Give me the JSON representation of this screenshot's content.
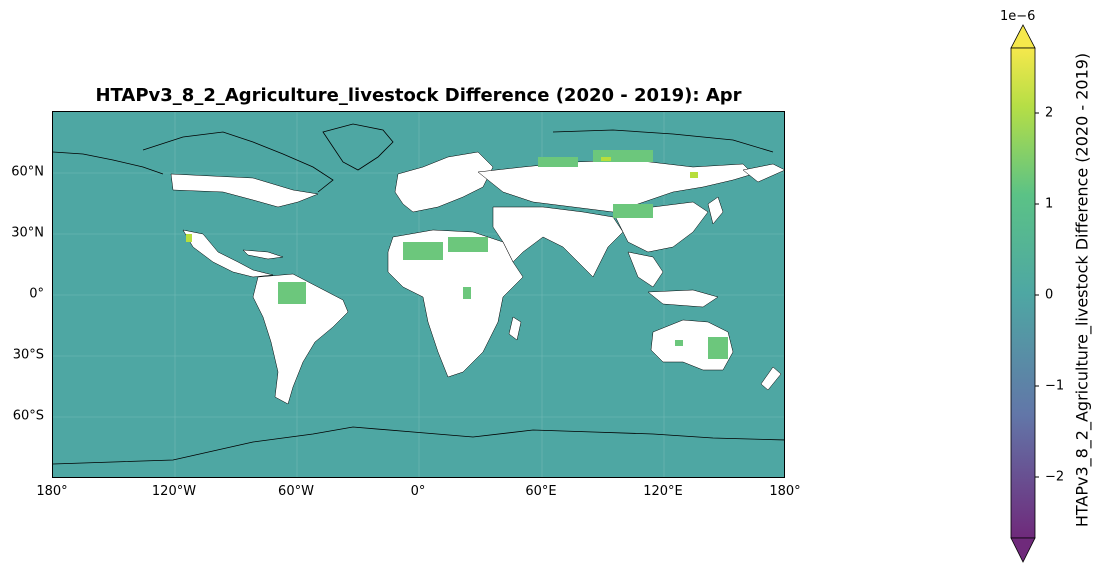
{
  "title": "HTAPv3_8_2_Agriculture_livestock Difference (2020 - 2019): Apr",
  "map": {
    "projection": "PlateCarree",
    "ocean_color": "#4ea7a3",
    "land_nodata_color": "#ffffff",
    "positive_color": "#6cc77c",
    "high_color": "#b7de3c",
    "coastline_color": "#000000"
  },
  "lat_ticks": [
    "60°N",
    "30°N",
    "0°",
    "30°S",
    "60°S"
  ],
  "lon_ticks": [
    "180°",
    "120°W",
    "60°W",
    "0°",
    "60°E",
    "120°E",
    "180°"
  ],
  "colorbar": {
    "label": "HTAPv3_8_2_Agriculture_livestock Difference (2020 - 2019)",
    "exponent": "1e−6",
    "ticks": [
      "2",
      "1",
      "0",
      "−1",
      "−2"
    ],
    "range": [
      -2.7,
      2.7
    ],
    "extend": "both",
    "colors": [
      "#6f2a7b",
      "#6276a8",
      "#4ea7a3",
      "#5bc286",
      "#b5de46",
      "#f5e84c"
    ]
  }
}
